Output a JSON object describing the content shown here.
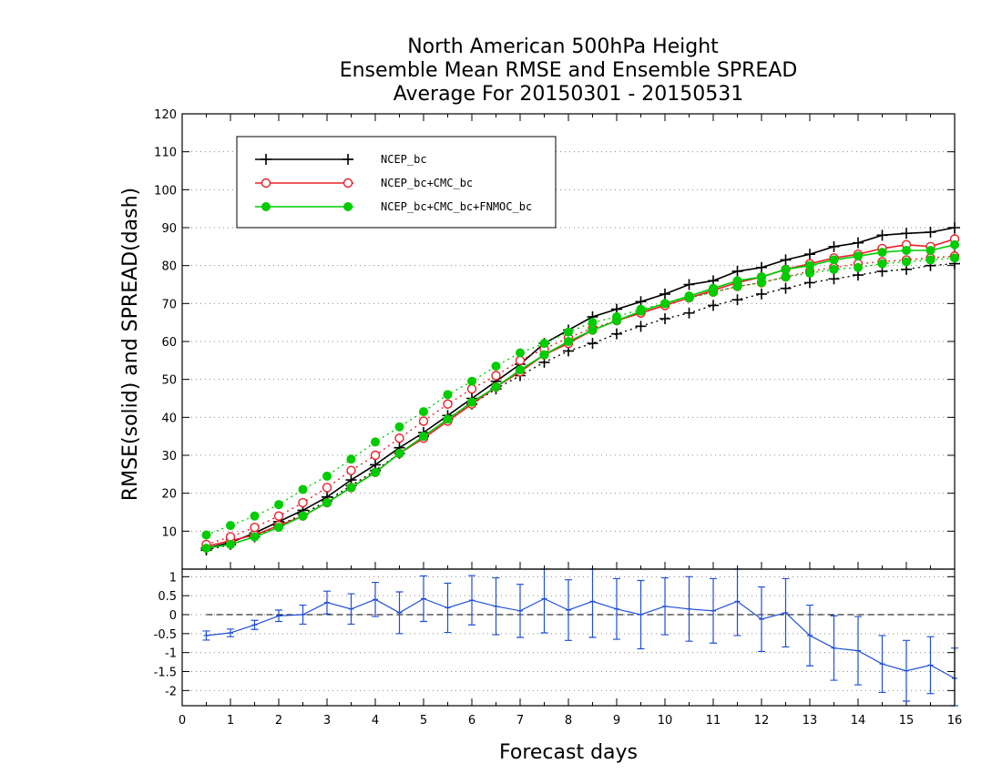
{
  "chart_data": [
    {
      "type": "line",
      "title": [
        "North American 500hPa Height",
        "Ensemble Mean RMSE and Ensemble SPREAD",
        "Average For 20150301 - 20150531"
      ],
      "ylabel": "RMSE(solid) and SPREAD(dash)",
      "xlim": [
        0,
        16
      ],
      "ylim": [
        0,
        120
      ],
      "yticks": [
        10,
        20,
        30,
        40,
        50,
        60,
        70,
        80,
        90,
        100,
        110,
        120
      ],
      "grid": "horizontal dotted",
      "legend_position": "top-left",
      "x": [
        0.5,
        1,
        1.5,
        2,
        2.5,
        3,
        3.5,
        4,
        4.5,
        5,
        5.5,
        6,
        6.5,
        7,
        7.5,
        8,
        8.5,
        9,
        9.5,
        10,
        10.5,
        11,
        11.5,
        12,
        12.5,
        13,
        13.5,
        14,
        14.5,
        15,
        15.5,
        16
      ],
      "series": [
        {
          "name": "NCEP_bc",
          "style": "solid",
          "color": "#000000",
          "marker": "plus",
          "values": [
            5.5,
            7.0,
            9.5,
            12.5,
            15.5,
            19.0,
            23.5,
            27.5,
            32.0,
            36.0,
            40.5,
            45.0,
            49.5,
            54.0,
            59.5,
            63.0,
            66.5,
            68.5,
            70.5,
            72.5,
            75.0,
            76.0,
            78.5,
            79.5,
            81.5,
            83.0,
            85.0,
            86.0,
            88.0,
            88.5,
            88.8,
            90.0
          ]
        },
        {
          "style": "dash",
          "color": "#000000",
          "marker": "plus",
          "values": [
            5.0,
            6.5,
            8.5,
            11.5,
            14.5,
            18.0,
            22.0,
            26.0,
            30.5,
            35.0,
            39.5,
            43.5,
            47.5,
            51.0,
            54.5,
            57.5,
            59.5,
            62.0,
            64.0,
            66.0,
            67.5,
            69.5,
            71.0,
            72.5,
            74.0,
            75.5,
            76.5,
            77.5,
            78.5,
            79.0,
            80.0,
            80.5
          ]
        },
        {
          "name": "NCEP_bc+CMC_bc",
          "style": "solid",
          "color": "#e8202a",
          "marker": "open-circle",
          "values": [
            6.0,
            7.5,
            9.0,
            11.5,
            14.0,
            17.5,
            21.5,
            25.5,
            30.5,
            34.5,
            39.0,
            43.5,
            48.0,
            52.0,
            56.5,
            59.5,
            63.0,
            65.5,
            67.5,
            69.5,
            71.5,
            73.5,
            75.5,
            77.0,
            79.0,
            80.5,
            82.0,
            83.0,
            84.5,
            85.5,
            85.0,
            87.0
          ]
        },
        {
          "style": "dash",
          "color": "#e8202a",
          "marker": "open-circle",
          "values": [
            6.5,
            8.5,
            11.0,
            14.0,
            17.5,
            21.5,
            26.0,
            30.0,
            34.5,
            39.0,
            43.5,
            47.5,
            51.0,
            55.0,
            58.0,
            61.0,
            63.5,
            65.5,
            67.5,
            69.5,
            71.5,
            73.0,
            74.5,
            75.5,
            77.0,
            78.5,
            79.5,
            80.5,
            81.0,
            81.5,
            82.0,
            82.5
          ]
        },
        {
          "name": "NCEP_bc+CMC_bc+FNMOC_bc",
          "style": "solid",
          "color": "#00cc00",
          "marker": "filled-circle",
          "values": [
            5.5,
            6.5,
            8.5,
            11.0,
            14.0,
            17.5,
            21.5,
            25.5,
            30.5,
            35.0,
            39.5,
            44.0,
            48.0,
            52.5,
            56.5,
            60.0,
            63.0,
            65.5,
            68.0,
            70.0,
            72.0,
            74.0,
            76.0,
            77.0,
            79.0,
            80.0,
            81.5,
            82.5,
            83.5,
            84.0,
            84.0,
            85.5
          ]
        },
        {
          "style": "dash",
          "color": "#00cc00",
          "marker": "filled-circle",
          "values": [
            9.0,
            11.5,
            14.0,
            17.0,
            21.0,
            24.5,
            29.0,
            33.5,
            37.5,
            41.5,
            46.0,
            49.5,
            53.5,
            57.0,
            59.5,
            62.5,
            65.0,
            66.5,
            68.5,
            70.0,
            71.5,
            73.0,
            74.5,
            75.5,
            77.0,
            78.0,
            79.0,
            79.5,
            80.5,
            81.0,
            81.5,
            82.0
          ]
        }
      ]
    },
    {
      "type": "line",
      "xlabel": "Forecast days",
      "xlim": [
        0,
        16
      ],
      "xticks": [
        0,
        1,
        2,
        3,
        4,
        5,
        6,
        7,
        8,
        9,
        10,
        11,
        12,
        13,
        14,
        15,
        16
      ],
      "ylim": [
        -2.4,
        1.2
      ],
      "yticks": [
        -2,
        -1.5,
        -1,
        -0.5,
        0,
        0.5,
        1
      ],
      "ytick_labels": [
        "-2",
        "-1.5",
        "-1",
        "-0.5",
        "0",
        "0.5",
        "1"
      ],
      "reference_line": 0,
      "grid": "horizontal dotted",
      "color": "#1f4fd8",
      "x": [
        0.5,
        1,
        1.5,
        2,
        2.5,
        3,
        3.5,
        4,
        4.5,
        5,
        5.5,
        6,
        6.5,
        7,
        7.5,
        8,
        8.5,
        9,
        9.5,
        10,
        10.5,
        11,
        11.5,
        12,
        12.5,
        13,
        13.5,
        14,
        14.5,
        15,
        15.5,
        16
      ],
      "values": [
        -0.55,
        -0.48,
        -0.27,
        -0.03,
        0.0,
        0.32,
        0.15,
        0.4,
        0.05,
        0.42,
        0.18,
        0.38,
        0.22,
        0.1,
        0.42,
        0.12,
        0.35,
        0.15,
        0.0,
        0.22,
        0.15,
        0.1,
        0.35,
        -0.12,
        0.05,
        -0.55,
        -0.88,
        -0.95,
        -1.3,
        -1.48,
        -1.33,
        -1.68
      ],
      "error": [
        0.12,
        0.1,
        0.12,
        0.15,
        0.25,
        0.3,
        0.4,
        0.45,
        0.55,
        0.6,
        0.65,
        0.65,
        0.75,
        0.7,
        0.9,
        0.8,
        0.95,
        0.8,
        0.9,
        0.75,
        0.85,
        0.85,
        0.9,
        0.85,
        0.9,
        0.8,
        0.85,
        0.9,
        0.75,
        0.8,
        0.75,
        0.8
      ]
    }
  ]
}
